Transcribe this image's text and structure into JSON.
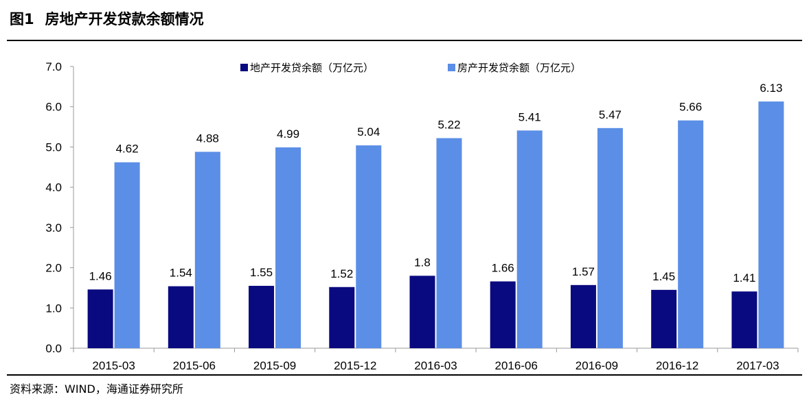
{
  "figure": {
    "number": "图1",
    "title": "房地产开发贷款余额情况",
    "source": "资料来源：WIND，海通证券研究所"
  },
  "colors": {
    "series1": "#0a0a80",
    "series2": "#5b8ee6"
  },
  "chart_data": {
    "type": "bar",
    "categories": [
      "2015-03",
      "2015-06",
      "2015-09",
      "2015-12",
      "2016-03",
      "2016-06",
      "2016-09",
      "2016-12",
      "2017-03"
    ],
    "series": [
      {
        "name": "地产开发贷余额（万亿元）",
        "values": [
          1.46,
          1.54,
          1.55,
          1.52,
          1.8,
          1.66,
          1.57,
          1.45,
          1.41
        ],
        "labels": [
          "1.46",
          "1.54",
          "1.55",
          "1.52",
          "1.8",
          "1.66",
          "1.57",
          "1.45",
          "1.41"
        ]
      },
      {
        "name": "房产开发贷余额（万亿元）",
        "values": [
          4.62,
          4.88,
          4.99,
          5.04,
          5.22,
          5.41,
          5.47,
          5.66,
          6.13
        ],
        "labels": [
          "4.62",
          "4.88",
          "4.99",
          "5.04",
          "5.22",
          "5.41",
          "5.47",
          "5.66",
          "6.13"
        ]
      }
    ],
    "ylim": [
      0,
      7
    ],
    "yticks": [
      "0.0",
      "1.0",
      "2.0",
      "3.0",
      "4.0",
      "5.0",
      "6.0",
      "7.0"
    ],
    "grid": false,
    "legend": "top"
  }
}
